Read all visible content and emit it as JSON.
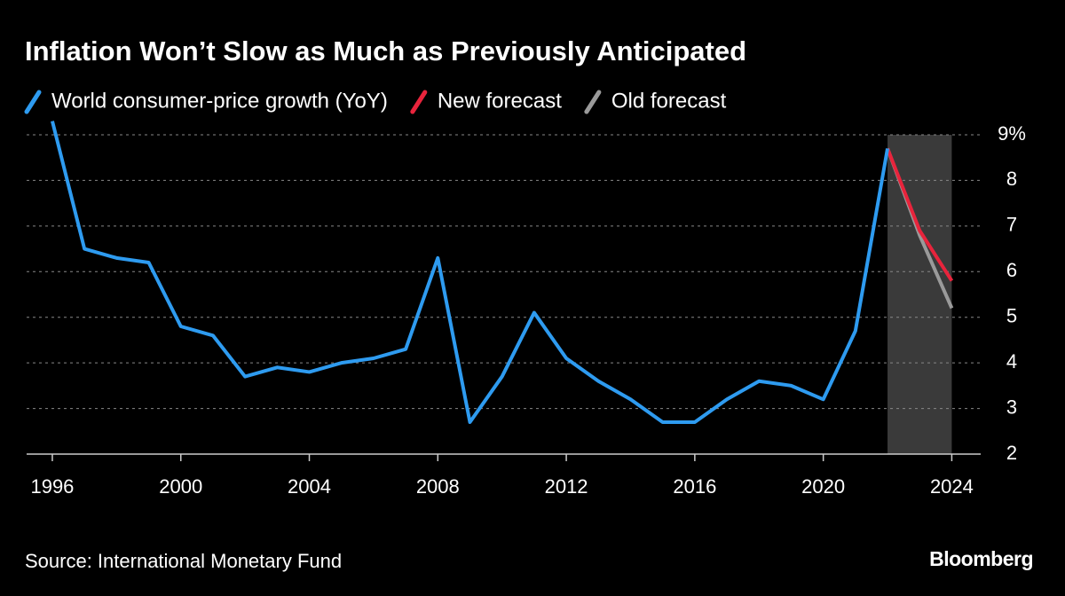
{
  "chart_data": {
    "type": "line",
    "title": "Inflation Won’t Slow as Much as Previously Anticipated",
    "source": "Source: International Monetary Fund",
    "brand": "Bloomberg",
    "xlim": [
      1995.2,
      2024.9
    ],
    "xticks": [
      1996,
      2000,
      2004,
      2008,
      2012,
      2016,
      2020,
      2024
    ],
    "ylim": [
      2,
      9
    ],
    "yticks": [
      2,
      3,
      4,
      5,
      6,
      7,
      8,
      {
        "value": 9,
        "label": "9%"
      }
    ],
    "grid": true,
    "shaded_range": [
      2022,
      2024
    ],
    "series": [
      {
        "name": "World consumer-price growth (YoY)",
        "color": "#2e9bf0",
        "x": [
          1996,
          1997,
          1998,
          1999,
          2000,
          2001,
          2002,
          2003,
          2004,
          2005,
          2006,
          2007,
          2008,
          2009,
          2010,
          2011,
          2012,
          2013,
          2014,
          2015,
          2016,
          2017,
          2018,
          2019,
          2020,
          2021,
          2022
        ],
        "values": [
          9.3,
          6.5,
          6.3,
          6.2,
          4.8,
          4.6,
          3.7,
          3.9,
          3.8,
          4.0,
          4.1,
          4.3,
          6.3,
          2.7,
          3.7,
          5.1,
          4.1,
          3.6,
          3.2,
          2.7,
          2.7,
          3.2,
          3.6,
          3.5,
          3.2,
          4.7,
          8.7
        ]
      },
      {
        "name": "New forecast",
        "color": "#e8243c",
        "x": [
          2022,
          2023,
          2024
        ],
        "values": [
          8.7,
          6.9,
          5.8
        ]
      },
      {
        "name": "Old forecast",
        "color": "#9a9a9a",
        "x": [
          2022,
          2023,
          2024
        ],
        "values": [
          8.7,
          6.8,
          5.2
        ]
      }
    ]
  }
}
